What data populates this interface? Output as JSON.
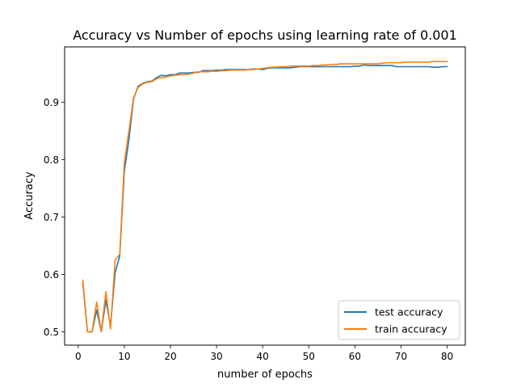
{
  "chart_data": {
    "type": "line",
    "title": "Accuracy vs Number of epochs using learning rate of 0.001",
    "xlabel": "number of epochs",
    "ylabel": "Accuracy",
    "xlim": [
      -2.95,
      83.95
    ],
    "ylim": [
      0.4767,
      0.9965
    ],
    "xticks": [
      0,
      10,
      20,
      30,
      40,
      50,
      60,
      70,
      80
    ],
    "xtick_labels": [
      "0",
      "10",
      "20",
      "30",
      "40",
      "50",
      "60",
      "70",
      "80"
    ],
    "yticks": [
      0.5,
      0.6,
      0.7,
      0.8,
      0.9
    ],
    "ytick_labels": [
      "0.5",
      "0.6",
      "0.7",
      "0.8",
      "0.9"
    ],
    "grid": false,
    "legend_position": "lower-right",
    "x": [
      1,
      2,
      3,
      4,
      5,
      6,
      7,
      8,
      9,
      10,
      11,
      12,
      13,
      14,
      15,
      16,
      17,
      18,
      19,
      20,
      21,
      22,
      23,
      24,
      25,
      26,
      27,
      28,
      29,
      30,
      31,
      32,
      33,
      34,
      35,
      36,
      37,
      38,
      39,
      40,
      41,
      42,
      43,
      44,
      45,
      46,
      47,
      48,
      49,
      50,
      51,
      52,
      53,
      54,
      55,
      56,
      57,
      58,
      59,
      60,
      61,
      62,
      63,
      64,
      65,
      66,
      67,
      68,
      69,
      70,
      71,
      72,
      73,
      74,
      75,
      76,
      77,
      78,
      79,
      80
    ],
    "series": [
      {
        "name": "test accuracy",
        "color": "#1f77b4",
        "values": [
          0.585,
          0.5,
          0.5,
          0.538,
          0.5,
          0.555,
          0.51,
          0.603,
          0.632,
          0.78,
          0.835,
          0.906,
          0.928,
          0.933,
          0.936,
          0.937,
          0.943,
          0.947,
          0.946,
          0.948,
          0.948,
          0.951,
          0.951,
          0.951,
          0.952,
          0.952,
          0.955,
          0.955,
          0.955,
          0.956,
          0.956,
          0.957,
          0.957,
          0.957,
          0.957,
          0.957,
          0.957,
          0.958,
          0.958,
          0.957,
          0.959,
          0.96,
          0.96,
          0.96,
          0.96,
          0.96,
          0.961,
          0.962,
          0.962,
          0.962,
          0.962,
          0.962,
          0.962,
          0.962,
          0.962,
          0.962,
          0.962,
          0.962,
          0.962,
          0.963,
          0.963,
          0.965,
          0.964,
          0.964,
          0.964,
          0.964,
          0.964,
          0.964,
          0.962,
          0.962,
          0.962,
          0.962,
          0.962,
          0.962,
          0.962,
          0.962,
          0.961,
          0.961,
          0.962,
          0.962
        ]
      },
      {
        "name": "train accuracy",
        "color": "#ff7f0e",
        "values": [
          0.59,
          0.5,
          0.5,
          0.552,
          0.5,
          0.57,
          0.505,
          0.625,
          0.635,
          0.795,
          0.85,
          0.908,
          0.926,
          0.932,
          0.935,
          0.936,
          0.941,
          0.943,
          0.944,
          0.946,
          0.947,
          0.948,
          0.948,
          0.949,
          0.951,
          0.953,
          0.953,
          0.953,
          0.954,
          0.954,
          0.955,
          0.955,
          0.956,
          0.956,
          0.956,
          0.956,
          0.957,
          0.957,
          0.958,
          0.959,
          0.96,
          0.961,
          0.961,
          0.962,
          0.962,
          0.963,
          0.963,
          0.963,
          0.963,
          0.963,
          0.964,
          0.964,
          0.965,
          0.965,
          0.966,
          0.966,
          0.967,
          0.967,
          0.967,
          0.967,
          0.967,
          0.967,
          0.967,
          0.967,
          0.967,
          0.968,
          0.969,
          0.969,
          0.969,
          0.969,
          0.97,
          0.97,
          0.97,
          0.97,
          0.97,
          0.97,
          0.971,
          0.971,
          0.971,
          0.971
        ]
      }
    ]
  }
}
